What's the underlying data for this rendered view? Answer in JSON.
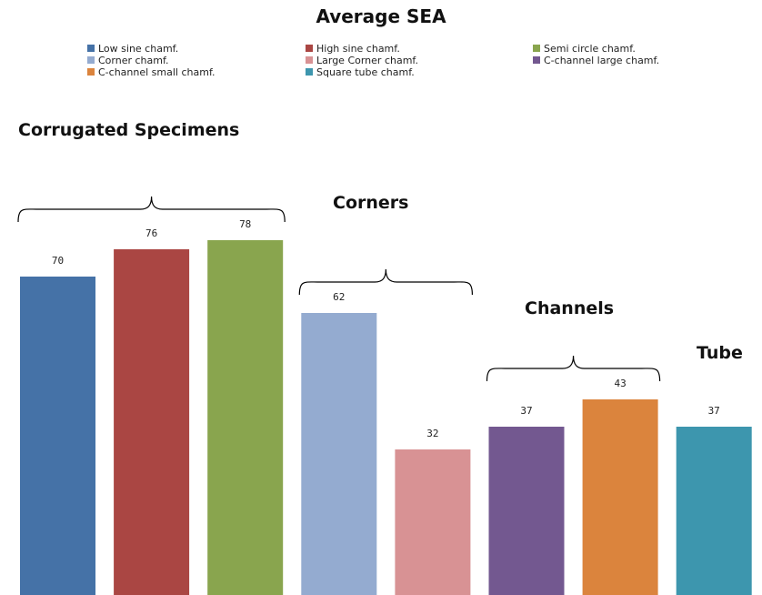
{
  "chart_data": {
    "type": "bar",
    "title": "Average SEA",
    "xlabel": "",
    "ylabel": "",
    "ylim": [
      0,
      82
    ],
    "grid": false,
    "legend_position": "top",
    "categories": [
      "Low sine chamf.",
      "High sine chamf.",
      "Semi circle chamf.",
      "Corner chamf.",
      "Large Corner chamf.",
      "C-channel large chamf.",
      "C-channel small chamf.",
      "Square tube chamf."
    ],
    "values": [
      70,
      76,
      78,
      62,
      32,
      37,
      43,
      37
    ],
    "data_labels": [
      "70",
      "76",
      "78",
      "62",
      "32",
      "37",
      "43",
      "37"
    ],
    "colors": [
      "#4572A7",
      "#AA4643",
      "#89A54E",
      "#94ABD0",
      "#D89294",
      "#735890",
      "#DB843D",
      "#3D96AE"
    ],
    "groups": [
      {
        "label": "Corrugated Specimens",
        "start": 0,
        "end": 2
      },
      {
        "label": "Corners",
        "start": 3,
        "end": 4
      },
      {
        "label": "Channels",
        "start": 5,
        "end": 6
      },
      {
        "label": "Tube",
        "start": 7,
        "end": 7
      }
    ]
  }
}
